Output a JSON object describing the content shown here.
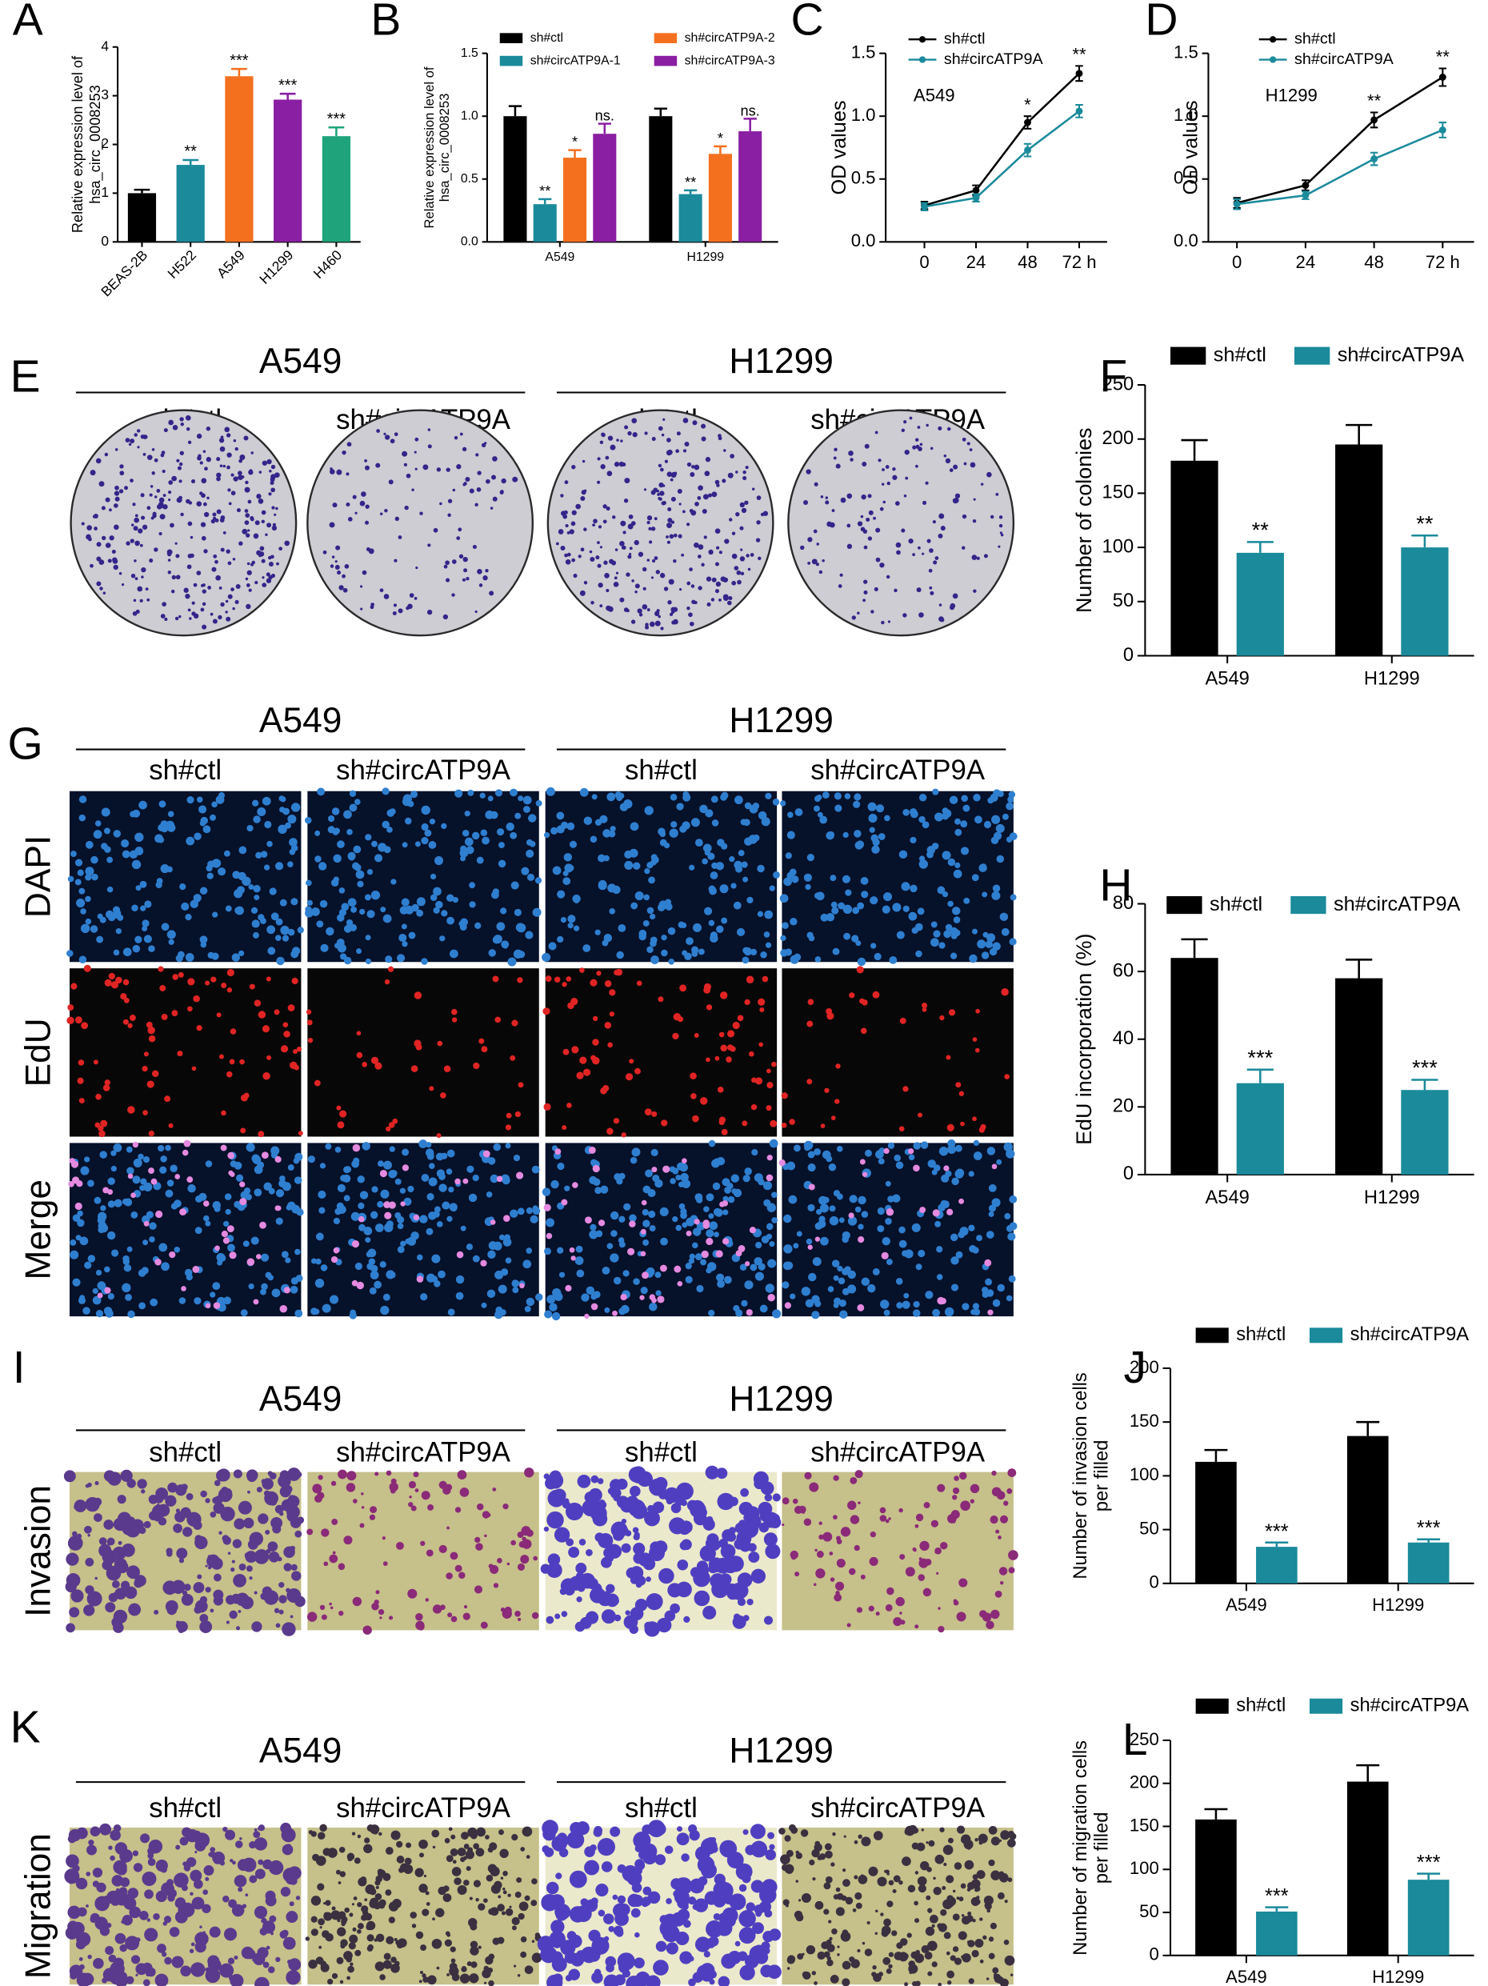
{
  "chart_data": [
    {
      "label": "A",
      "type": "bar",
      "ylabel": [
        "Relative expression level of",
        "hsa_circ_0008253"
      ],
      "categories": [
        "BEAS-2B",
        "H522",
        "A549",
        "H1299",
        "H460"
      ],
      "values": [
        1.0,
        1.58,
        3.4,
        2.92,
        2.17
      ],
      "errors": [
        0.07,
        0.1,
        0.15,
        0.12,
        0.18
      ],
      "colors": [
        "#000000",
        "#1b8a9b",
        "#f4701f",
        "#8a1fa3",
        "#1fa37a"
      ],
      "annotations": [
        null,
        "**",
        "***",
        "***",
        "***"
      ],
      "ylim": [
        0,
        4
      ],
      "yticks": [
        0,
        1,
        2,
        3,
        4
      ]
    },
    {
      "label": "B",
      "type": "bar",
      "ylabel": [
        "Relative expression level of",
        "hsa_circ_0008253"
      ],
      "categories": [
        "A549",
        "H1299"
      ],
      "series": [
        {
          "name": "sh#ctl",
          "color": "#000000",
          "values": [
            1.0,
            1.0
          ],
          "errors": [
            0.08,
            0.06
          ]
        },
        {
          "name": "sh#circATP9A-1",
          "color": "#1b8a9b",
          "values": [
            0.3,
            0.38
          ],
          "errors": [
            0.04,
            0.03
          ],
          "annotations": [
            "**",
            "**"
          ]
        },
        {
          "name": "sh#circATP9A-2",
          "color": "#f4701f",
          "values": [
            0.67,
            0.7
          ],
          "errors": [
            0.06,
            0.06
          ],
          "annotations": [
            "*",
            "*"
          ]
        },
        {
          "name": "sh#circATP9A-3",
          "color": "#8a1fa3",
          "values": [
            0.86,
            0.88
          ],
          "errors": [
            0.08,
            0.1
          ],
          "annotations": [
            "ns.",
            "ns."
          ]
        }
      ],
      "ylim": [
        0,
        1.5
      ],
      "yticks": [
        {
          "value": 0,
          "label": "0.0"
        },
        {
          "value": 0.5,
          "label": "0.5"
        },
        {
          "value": 1,
          "label": "1.0"
        },
        {
          "value": 1.5,
          "label": "1.5"
        }
      ]
    },
    {
      "label": "C",
      "type": "line",
      "ylabel": "OD values",
      "note": "A549",
      "x": [
        0,
        24,
        48,
        72
      ],
      "series": [
        {
          "name": "sh#ctl",
          "color": "#000000",
          "values": [
            0.29,
            0.41,
            0.95,
            1.34
          ],
          "errors": [
            0.03,
            0.04,
            0.05,
            0.06
          ]
        },
        {
          "name": "sh#circATP9A",
          "color": "#1b8a9b",
          "values": [
            0.28,
            0.35,
            0.73,
            1.04
          ],
          "errors": [
            0.03,
            0.03,
            0.05,
            0.05
          ]
        }
      ],
      "annotations": [
        null,
        null,
        "*",
        "**"
      ],
      "xlim": [
        -18,
        85
      ],
      "xticks": [
        0,
        24,
        48,
        {
          "value": 72,
          "label": "72 h"
        }
      ],
      "ylim": [
        0,
        1.5
      ],
      "yticks": [
        {
          "value": 0,
          "label": "0.0"
        },
        {
          "value": 0.5,
          "label": "0.5"
        },
        {
          "value": 1,
          "label": "1.0"
        },
        {
          "value": 1.5,
          "label": "1.5"
        }
      ]
    },
    {
      "label": "D",
      "type": "line",
      "ylabel": "OD values",
      "note": "H1299",
      "x": [
        0,
        24,
        48,
        72
      ],
      "series": [
        {
          "name": "sh#ctl",
          "color": "#000000",
          "values": [
            0.31,
            0.45,
            0.97,
            1.31
          ],
          "errors": [
            0.04,
            0.04,
            0.06,
            0.07
          ]
        },
        {
          "name": "sh#circATP9A",
          "color": "#1b8a9b",
          "values": [
            0.3,
            0.37,
            0.66,
            0.89
          ],
          "errors": [
            0.04,
            0.03,
            0.05,
            0.06
          ]
        }
      ],
      "annotations": [
        null,
        null,
        "**",
        "**"
      ],
      "xlim": [
        -10,
        83
      ],
      "xticks": [
        0,
        24,
        48,
        {
          "value": 72,
          "label": "72 h"
        }
      ],
      "ylim": [
        0,
        1.5
      ],
      "yticks": [
        {
          "value": 0,
          "label": "0.0"
        },
        {
          "value": 0.5,
          "label": "0.5"
        },
        {
          "value": 1,
          "label": "1.0"
        },
        {
          "value": 1.5,
          "label": "1.5"
        }
      ]
    },
    {
      "label": "F",
      "type": "bar",
      "ylabel": "Number of colonies",
      "categories": [
        "A549",
        "H1299"
      ],
      "series": [
        {
          "name": "sh#ctl",
          "color": "#000000",
          "values": [
            180,
            195
          ],
          "errors": [
            19,
            18
          ]
        },
        {
          "name": "sh#circATP9A",
          "color": "#1b8a9b",
          "values": [
            95,
            100
          ],
          "errors": [
            10,
            11
          ],
          "annotations": [
            "**",
            "**"
          ]
        }
      ],
      "ylim": [
        0,
        250
      ],
      "yticks": [
        0,
        50,
        100,
        150,
        200,
        250
      ]
    },
    {
      "label": "H",
      "type": "bar",
      "ylabel": "EdU incorporation (%)",
      "categories": [
        "A549",
        "H1299"
      ],
      "series": [
        {
          "name": "sh#ctl",
          "color": "#000000",
          "values": [
            64,
            58
          ],
          "errors": [
            5.5,
            5.5
          ]
        },
        {
          "name": "sh#circATP9A",
          "color": "#1b8a9b",
          "values": [
            27,
            25
          ],
          "errors": [
            4,
            3
          ],
          "annotations": [
            "***",
            "***"
          ]
        }
      ],
      "ylim": [
        0,
        80
      ],
      "yticks": [
        0,
        20,
        40,
        60,
        80
      ]
    },
    {
      "label": "J",
      "type": "bar",
      "ylabel": [
        "Number of invasion cells",
        "per filled"
      ],
      "categories": [
        "A549",
        "H1299"
      ],
      "series": [
        {
          "name": "sh#ctl",
          "color": "#000000",
          "values": [
            113,
            137
          ],
          "errors": [
            11,
            13
          ]
        },
        {
          "name": "sh#circATP9A",
          "color": "#1b8a9b",
          "values": [
            34,
            38
          ],
          "errors": [
            4,
            3
          ],
          "annotations": [
            "***",
            "***"
          ]
        }
      ],
      "ylim": [
        0,
        200
      ],
      "yticks": [
        0,
        50,
        100,
        150,
        200
      ]
    },
    {
      "label": "L",
      "type": "bar",
      "ylabel": [
        "Number of migration cells",
        "per filled"
      ],
      "categories": [
        "A549",
        "H1299"
      ],
      "series": [
        {
          "name": "sh#ctl",
          "color": "#000000",
          "values": [
            158,
            202
          ],
          "errors": [
            12,
            19
          ]
        },
        {
          "name": "sh#circATP9A",
          "color": "#1b8a9b",
          "values": [
            51,
            88
          ],
          "errors": [
            5,
            7
          ],
          "annotations": [
            "***",
            "***"
          ]
        }
      ],
      "ylim": [
        0,
        250
      ],
      "yticks": [
        0,
        50,
        100,
        150,
        200,
        250
      ]
    }
  ],
  "image_panels": [
    {
      "label": "E",
      "groups": [
        "A549",
        "H1299"
      ],
      "conditions": [
        "sh#ctl",
        "sh#circATP9A",
        "sh#ctl",
        "sh#circATP9A"
      ]
    },
    {
      "label": "G",
      "groups": [
        "A549",
        "H1299"
      ],
      "conditions": [
        "sh#ctl",
        "sh#circATP9A",
        "sh#ctl",
        "sh#circATP9A"
      ],
      "rows": [
        "DAPI",
        "EdU",
        "Merge"
      ]
    },
    {
      "label": "I",
      "groups": [
        "A549",
        "H1299"
      ],
      "conditions": [
        "sh#ctl",
        "sh#circATP9A",
        "sh#ctl",
        "sh#circATP9A"
      ],
      "rows": [
        "Invasion"
      ]
    },
    {
      "label": "K",
      "groups": [
        "A549",
        "H1299"
      ],
      "conditions": [
        "sh#ctl",
        "sh#circATP9A",
        "sh#ctl",
        "sh#circATP9A"
      ],
      "rows": [
        "Migration"
      ]
    }
  ]
}
